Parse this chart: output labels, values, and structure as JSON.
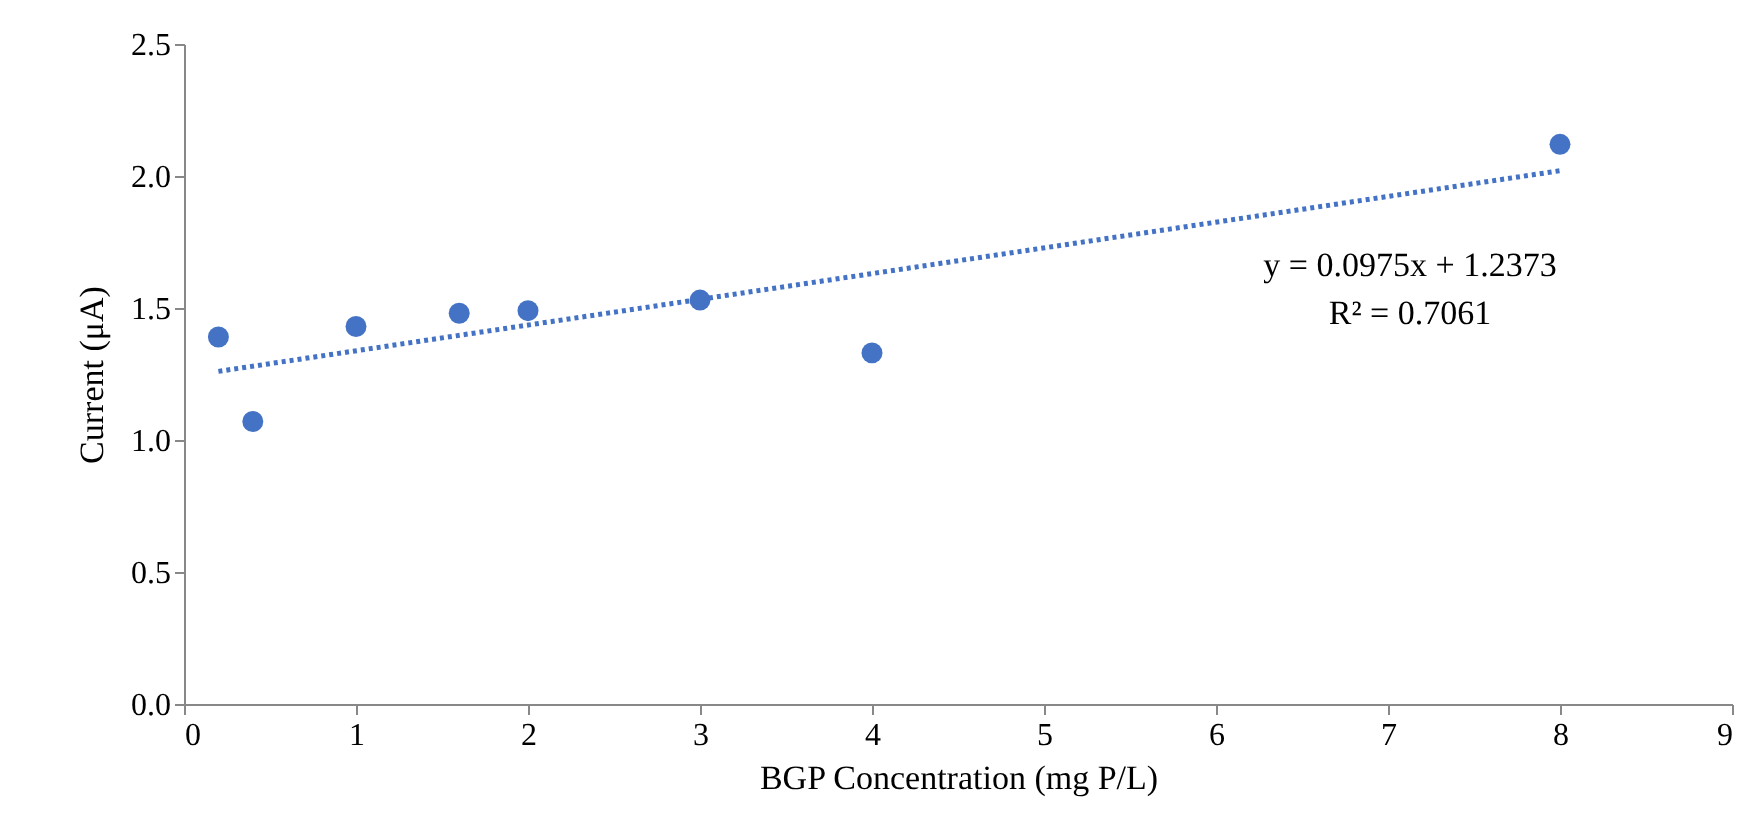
{
  "chart_data": {
    "type": "scatter",
    "xlabel": "BGP Concentration (mg P/L)",
    "ylabel": "Current (μA)",
    "xlim": [
      0,
      9
    ],
    "xticks": [
      0,
      1,
      2,
      3,
      4,
      5,
      6,
      7,
      8,
      9
    ],
    "ylim": [
      0,
      2.5
    ],
    "yticks": [
      {
        "value": 0,
        "label": "0.0"
      },
      {
        "value": 0.5,
        "label": "0.5"
      },
      {
        "value": 1,
        "label": "1.0"
      },
      {
        "value": 1.5,
        "label": "1.5"
      },
      {
        "value": 2,
        "label": "2.0"
      },
      {
        "value": 2.5,
        "label": "2.5"
      }
    ],
    "grid": false,
    "series": [
      {
        "color": "#4472c4",
        "marker": "circle",
        "x": [
          0.2,
          0.4,
          1,
          1.6,
          2,
          3,
          4,
          8
        ],
        "values": [
          1.39,
          1.07,
          1.43,
          1.48,
          1.49,
          1.53,
          1.33,
          2.12
        ]
      },
      {
        "type": "line",
        "color": "#4472c4",
        "line_style": "dotted",
        "marker": "none",
        "x": [
          0.2,
          8
        ],
        "values": [
          1.26,
          2.02
        ]
      }
    ],
    "annotations": [
      "y = 0.0975x + 1.2373",
      "R² = 0.7061"
    ]
  }
}
